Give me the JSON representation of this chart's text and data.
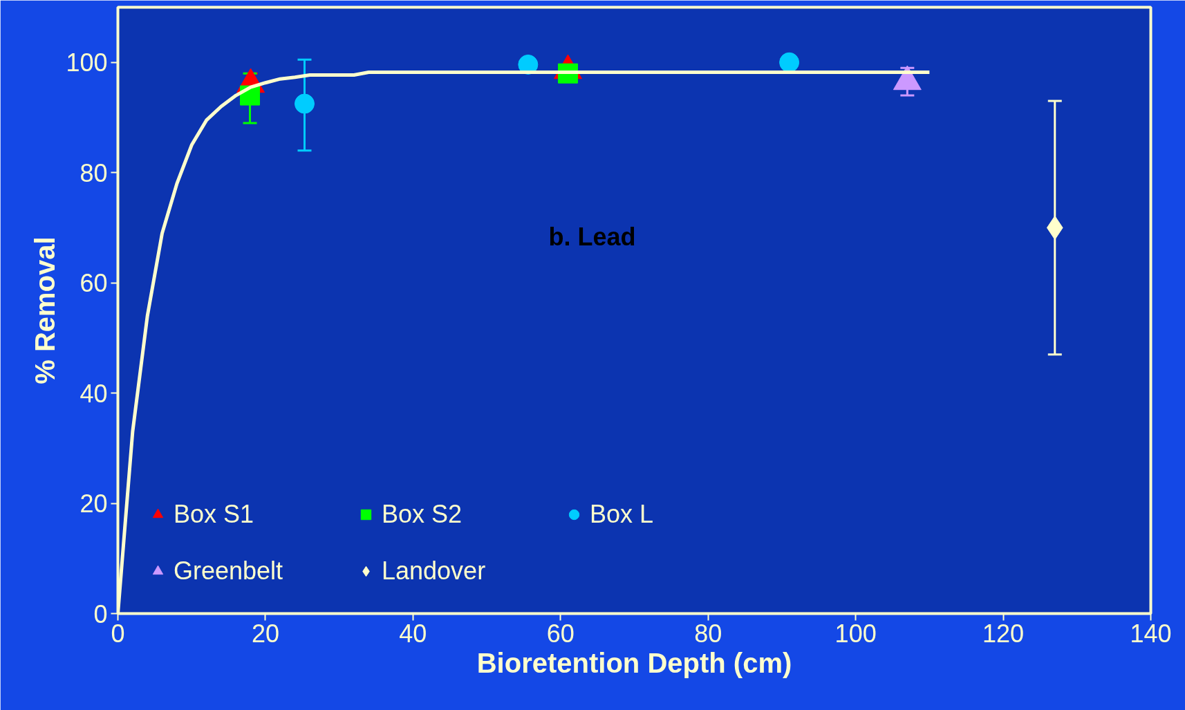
{
  "chart_data": {
    "type": "scatter",
    "xlabel": "Bioretention Depth (cm)",
    "ylabel": "% Removal",
    "annotations": [
      "b. Lead"
    ],
    "xlim": [
      0,
      140
    ],
    "ylim": [
      0,
      110
    ],
    "xticks": [
      0,
      20,
      40,
      60,
      80,
      100,
      120,
      140
    ],
    "yticks": [
      0,
      20,
      40,
      60,
      80,
      100
    ],
    "grid": false,
    "legend": "bottom left",
    "series": [
      {
        "name": "Box S1",
        "color": "#ff0000",
        "marker": "triangle",
        "x": [
          18,
          61
        ],
        "values": [
          96,
          98.5
        ],
        "errors": [
          2,
          null
        ]
      },
      {
        "name": "Box S2",
        "color": "#00ff00",
        "marker": "square",
        "x": [
          17.9,
          61
        ],
        "values": [
          94,
          98
        ],
        "errors": [
          [
            89,
            98
          ],
          null
        ]
      },
      {
        "name": "Box L",
        "color": "#00ccff",
        "marker": "circle",
        "x": [
          25.3,
          55.6,
          91
        ],
        "values": [
          92.5,
          99.6,
          100
        ],
        "errors": [
          [
            84,
            100.5
          ],
          null,
          null
        ]
      },
      {
        "name": "Greenbelt",
        "color": "#cc99ff",
        "marker": "triangle",
        "x": [
          107
        ],
        "values": [
          96.5
        ],
        "errors": [
          [
            94,
            99
          ]
        ]
      },
      {
        "name": "Landover",
        "color": "#ffffcc",
        "marker": "diamond",
        "x": [
          127
        ],
        "values": [
          70
        ],
        "errors": [
          [
            47,
            93
          ]
        ]
      },
      {
        "type": "line",
        "color": "#ffffcc",
        "x": [
          0,
          2,
          4,
          6,
          8,
          10,
          12,
          14,
          16,
          18,
          20,
          22,
          24,
          26,
          28,
          32,
          34,
          110
        ],
        "values": [
          0,
          33,
          54,
          69,
          78,
          85,
          89.5,
          92,
          94,
          95.5,
          96.3,
          97,
          97.3,
          97.7,
          97.7,
          97.7,
          98.2,
          98.2
        ]
      }
    ]
  }
}
